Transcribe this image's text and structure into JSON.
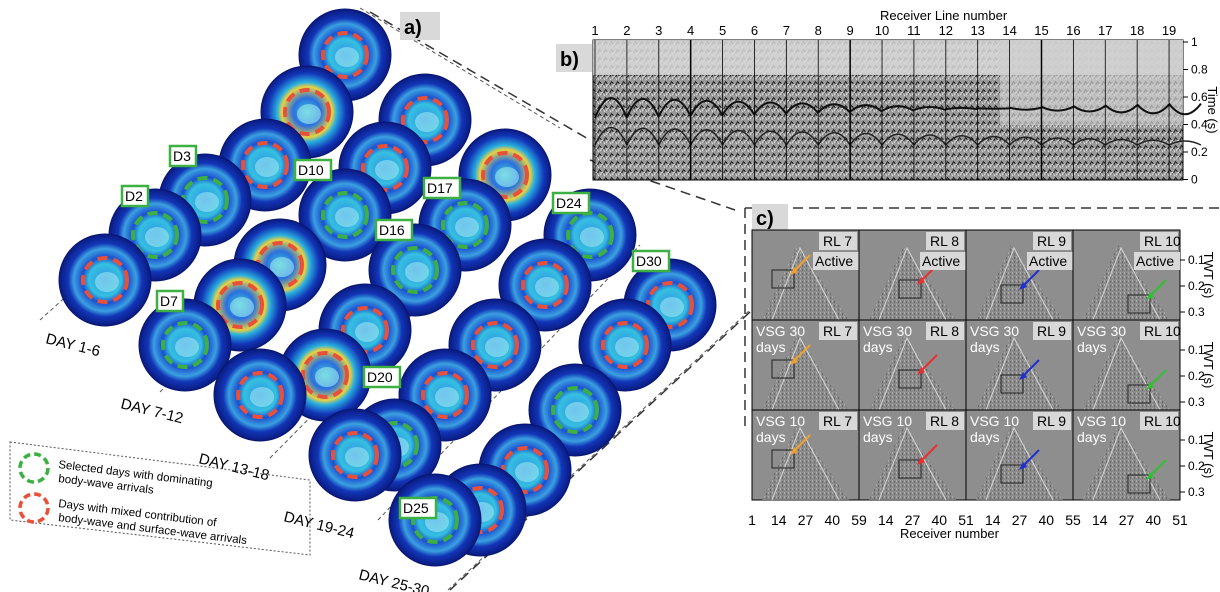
{
  "figure": {
    "panel_a": {
      "tag": "a)",
      "day_groups": [
        "DAY 1-6",
        "DAY 7-12",
        "DAY 13-18",
        "DAY 19-24",
        "DAY 25-30"
      ],
      "day_tags": [
        "D2",
        "D3",
        "D7",
        "D10",
        "D16",
        "D17",
        "D20",
        "D24",
        "D25",
        "D30"
      ],
      "legend": {
        "green_line1": "Selected days with dominating",
        "green_line2": "body-wave arrivals",
        "red_line1": "Days with mixed contribution of",
        "red_line2": "body-wave and surface-wave arrivals"
      },
      "colors": {
        "green": "#3cb043",
        "red": "#e8503a",
        "disk_outer": "#0b1f8a"
      }
    },
    "panel_b": {
      "tag": "b)",
      "xlabel": "Receiver Line number",
      "ylabel": "Time (s)",
      "line_numbers": [
        "1",
        "2",
        "3",
        "4",
        "5",
        "6",
        "7",
        "8",
        "9",
        "10",
        "11",
        "12",
        "13",
        "14",
        "15",
        "16",
        "17",
        "18",
        "19"
      ],
      "yticks": [
        "1",
        "0.8",
        "0.6",
        "0.4",
        "0.2",
        "0"
      ]
    },
    "panel_c": {
      "tag": "c)",
      "ylabel": "TWT (s)",
      "xlabel": "Receiver number",
      "yticks": [
        "0.1",
        "0.2",
        "0.3"
      ],
      "columns": [
        "RL 7",
        "RL 8",
        "RL 9",
        "RL 10"
      ],
      "row_modes": [
        "Active",
        "VSG 30",
        "VSG 10"
      ],
      "days_word": "days",
      "xticks": [
        "1",
        "14",
        "27",
        "40",
        "59",
        "14",
        "27",
        "40",
        "51",
        "14",
        "27",
        "40",
        "55",
        "14",
        "27",
        "40",
        "51"
      ],
      "arrow_colors": [
        "#f0a030",
        "#e83030",
        "#2030d0",
        "#30c030"
      ]
    }
  }
}
